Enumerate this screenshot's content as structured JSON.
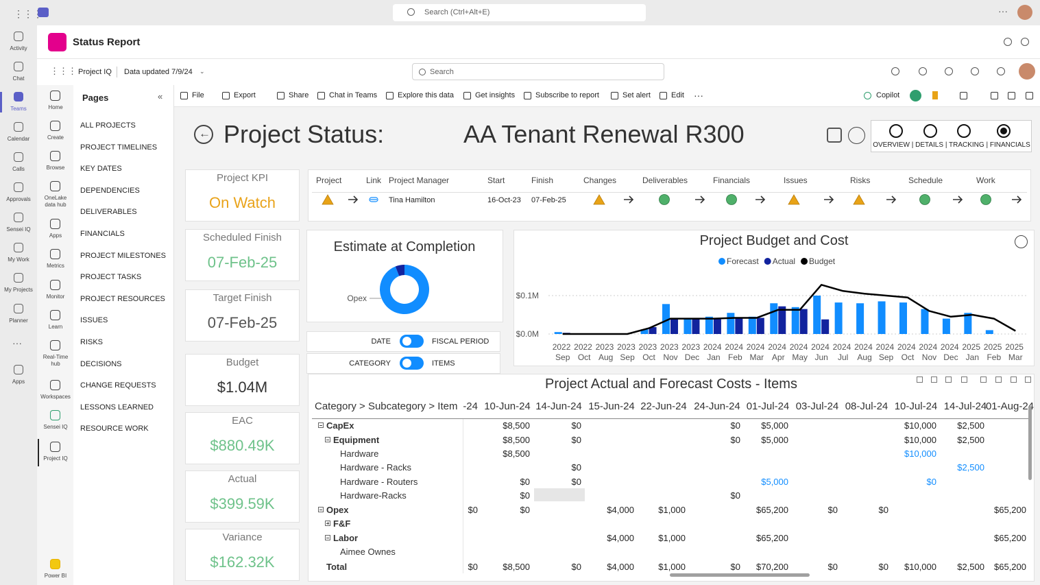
{
  "teams": {
    "search": "Search (Ctrl+Alt+E)",
    "rail": [
      "Activity",
      "Chat",
      "Teams",
      "Calendar",
      "Calls",
      "Approvals",
      "Sensei IQ",
      "My Work",
      "My Projects",
      "Planner",
      "Apps"
    ]
  },
  "app": {
    "title": "Status Report",
    "rail": [
      "Home",
      "Create",
      "Browse",
      "OneLake data hub",
      "Apps",
      "Metrics",
      "Monitor",
      "Learn",
      "Real-Time hub",
      "Workspaces",
      "Sensei IQ",
      "Project IQ",
      "Power BI"
    ]
  },
  "toolbar": {
    "workspace": "Project IQ",
    "updated": "Data updated 7/9/24",
    "search": "Search",
    "actions": [
      "File",
      "Export",
      "Share",
      "Chat in Teams",
      "Explore this data",
      "Get insights",
      "Subscribe to report",
      "Set alert",
      "Edit"
    ],
    "copilot": "Copilot"
  },
  "pages": {
    "title": "Pages",
    "items": [
      "ALL PROJECTS",
      "PROJECT TIMELINES",
      "KEY DATES",
      "DEPENDENCIES",
      "DELIVERABLES",
      "FINANCIALS",
      "PROJECT MILESTONES",
      "PROJECT TASKS",
      "PROJECT RESOURCES",
      "ISSUES",
      "RISKS",
      "DECISIONS",
      "CHANGE REQUESTS",
      "LESSONS LEARNED",
      "RESOURCE WORK"
    ]
  },
  "report": {
    "title": "Project Status:",
    "project": "AA Tenant Renewal R300",
    "nav": "OVERVIEW | DETAILS | TRACKING | FINANCIALS",
    "kpis": [
      {
        "label": "Project KPI",
        "value": "On Watch",
        "color": "#e9a31a"
      },
      {
        "label": "Scheduled Finish",
        "value": "07-Feb-25",
        "color": "#6ec28a"
      },
      {
        "label": "Target Finish",
        "value": "07-Feb-25",
        "color": "#555555"
      },
      {
        "label": "Budget",
        "value": "$1.04M",
        "color": "#333333"
      },
      {
        "label": "EAC",
        "value": "$880.49K",
        "color": "#6ec28a"
      },
      {
        "label": "Actual",
        "value": "$399.59K",
        "color": "#6ec28a"
      },
      {
        "label": "Variance",
        "value": "$162.32K",
        "color": "#6ec28a"
      }
    ],
    "status": {
      "headers": [
        "Project",
        "Link",
        "Project Manager",
        "Start",
        "Finish",
        "Changes",
        "Deliverables",
        "Financials",
        "Issues",
        "Risks",
        "Schedule",
        "Work"
      ],
      "manager": "Tina Hamilton",
      "start": "16-Oct-23",
      "finish": "07-Feb-25"
    },
    "toggles": [
      {
        "left": "DATE",
        "right": "FISCAL PERIOD"
      },
      {
        "left": "CATEGORY",
        "right": "ITEMS"
      }
    ],
    "table": {
      "title": "Project Actual and Forecast Costs - Items",
      "headers": [
        "Category > Subcategory > Item",
        "-24",
        "10-Jun-24",
        "14-Jun-24",
        "15-Jun-24",
        "22-Jun-24",
        "24-Jun-24",
        "01-Jul-24",
        "03-Jul-24",
        "08-Jul-24",
        "10-Jul-24",
        "14-Jul-24",
        "01-Aug-24"
      ],
      "rows": [
        {
          "label": "CapEx",
          "level": 0,
          "expander": "minus",
          "bold": true,
          "values": [
            null,
            "$8,500",
            "$0",
            null,
            null,
            "$0",
            "$5,000",
            null,
            null,
            "$10,000",
            "$2,500",
            null
          ]
        },
        {
          "label": "Equipment",
          "level": 1,
          "expander": "minus",
          "bold": true,
          "values": [
            null,
            "$8,500",
            "$0",
            null,
            null,
            "$0",
            "$5,000",
            null,
            null,
            "$10,000",
            "$2,500",
            null
          ]
        },
        {
          "label": "Hardware",
          "level": 2,
          "expander": null,
          "bold": false,
          "values": [
            null,
            "$8,500",
            null,
            null,
            null,
            null,
            null,
            null,
            null,
            "$10,000",
            null,
            null
          ],
          "link_columns": [
            9
          ]
        },
        {
          "label": "Hardware - Racks",
          "level": 2,
          "expander": null,
          "bold": false,
          "values": [
            null,
            null,
            "$0",
            null,
            null,
            null,
            null,
            null,
            null,
            null,
            "$2,500",
            null
          ],
          "link_columns": [
            10
          ]
        },
        {
          "label": "Hardware - Routers",
          "level": 2,
          "expander": null,
          "bold": false,
          "values": [
            null,
            "$0",
            "$0",
            null,
            null,
            null,
            "$5,000",
            null,
            null,
            "$0",
            null,
            null
          ],
          "link_columns": [
            6,
            9
          ]
        },
        {
          "label": "Hardware-Racks",
          "level": 2,
          "expander": null,
          "bold": false,
          "values": [
            null,
            "$0",
            null,
            null,
            null,
            "$0",
            null,
            null,
            null,
            null,
            null,
            null
          ]
        },
        {
          "label": "Opex",
          "level": 0,
          "expander": "minus",
          "bold": true,
          "values": [
            "$0",
            "$0",
            null,
            "$4,000",
            "$1,000",
            null,
            "$65,200",
            "$0",
            "$0",
            null,
            null,
            "$65,200"
          ]
        },
        {
          "label": "F&F",
          "level": 1,
          "expander": "plus",
          "bold": true,
          "values": [
            null,
            null,
            null,
            null,
            null,
            null,
            null,
            null,
            null,
            null,
            null,
            null
          ]
        },
        {
          "label": "Labor",
          "level": 1,
          "expander": "minus",
          "bold": true,
          "values": [
            null,
            null,
            null,
            "$4,000",
            "$1,000",
            null,
            "$65,200",
            null,
            null,
            null,
            null,
            "$65,200"
          ]
        },
        {
          "label": "Aimee Ownes",
          "level": 2,
          "expander": null,
          "bold": false,
          "values": [
            null,
            null,
            null,
            null,
            null,
            null,
            null,
            null,
            null,
            null,
            null,
            null
          ]
        },
        {
          "label": "Total",
          "level": 0,
          "expander": null,
          "bold": true,
          "values": [
            "$0",
            "$8,500",
            "$0",
            "$4,000",
            "$1,000",
            "$0",
            "$70,200",
            "$0",
            "$0",
            "$10,000",
            "$2,500",
            "$65,200"
          ]
        }
      ]
    }
  },
  "chart_data": [
    {
      "type": "pie",
      "title": "Estimate at Completion",
      "categories": [
        "Opex",
        null
      ],
      "values": [
        94,
        6
      ],
      "colors": [
        "#118dff",
        "#12239e"
      ],
      "donut": true
    },
    {
      "type": "combo",
      "title": "Project Budget and Cost",
      "categories": [
        "2022 Sep",
        "2022 Oct",
        "2023 Aug",
        "2023 Sep",
        "2023 Oct",
        "2023 Nov",
        "2023 Dec",
        "2024 Jan",
        "2024 Feb",
        "2024 Mar",
        "2024 Apr",
        "2024 May",
        "2024 Jun",
        "2024 Jul",
        "2024 Aug",
        "2024 Sep",
        "2024 Oct",
        "2024 Nov",
        "2024 Dec",
        "2025 Jan",
        "2025 Feb",
        "2025 Mar"
      ],
      "series": [
        {
          "name": "Forecast",
          "type": "bar",
          "color": "#118dff",
          "values": [
            5000,
            null,
            null,
            null,
            12000,
            78000,
            40000,
            45000,
            55000,
            45000,
            80000,
            70000,
            100000,
            82000,
            80000,
            85000,
            82000,
            65000,
            40000,
            55000,
            10000,
            null
          ]
        },
        {
          "name": "Actual",
          "type": "bar",
          "color": "#12239e",
          "values": [
            3000,
            null,
            null,
            null,
            18000,
            40000,
            40000,
            42000,
            42000,
            42000,
            72000,
            65000,
            38000,
            null,
            null,
            null,
            null,
            null,
            null,
            null,
            null,
            null
          ]
        },
        {
          "name": "Budget",
          "type": "line",
          "color": "#000000",
          "values": [
            0,
            0,
            0,
            0,
            15000,
            40000,
            40000,
            40000,
            42000,
            42000,
            63000,
            63000,
            128000,
            112000,
            105000,
            100000,
            95000,
            60000,
            45000,
            50000,
            40000,
            8000
          ]
        }
      ],
      "ylim": [
        0,
        160000
      ],
      "yticks": [
        {
          "value": 0,
          "label": "$0.0M"
        },
        {
          "value": 100000,
          "label": "$0.1M"
        }
      ],
      "grid": true
    }
  ]
}
